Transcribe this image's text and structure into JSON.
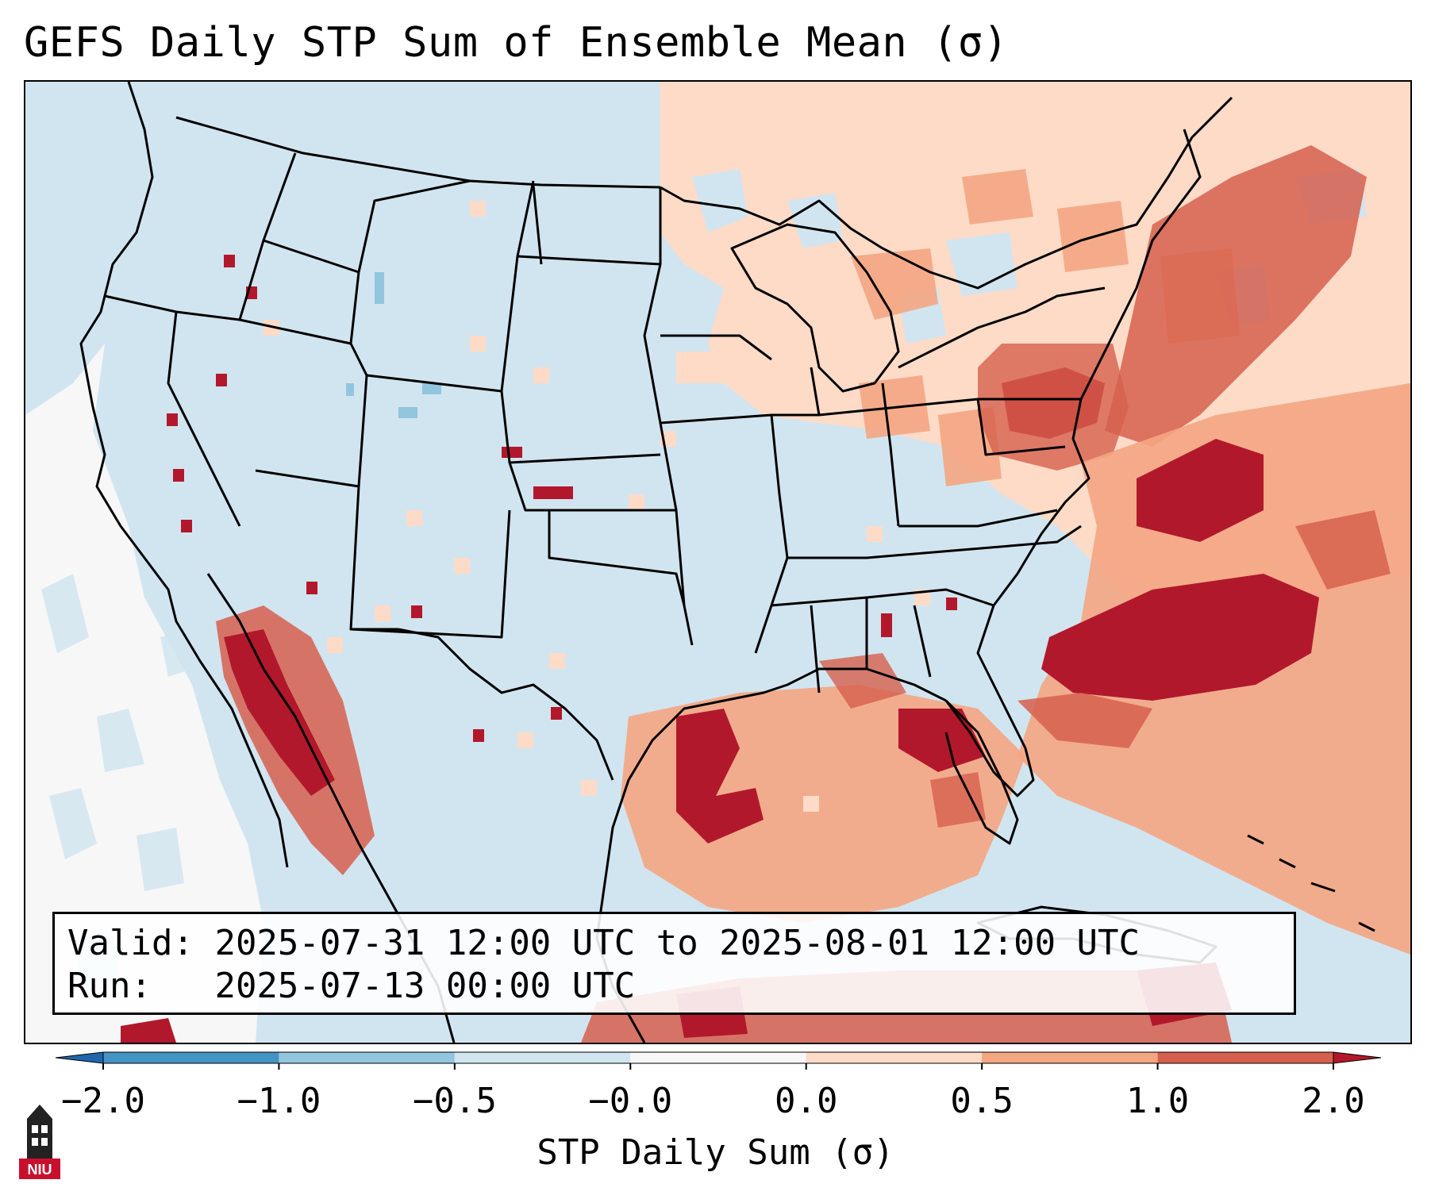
{
  "title": "GEFS Daily STP Sum of Ensemble Mean (σ)",
  "info": {
    "valid_label": "Valid:",
    "valid_value": "2025-07-31 12:00 UTC to 2025-08-01 12:00 UTC",
    "run_label": "Run:  ",
    "run_value": "2025-07-13 00:00 UTC"
  },
  "colorbar": {
    "label": "STP Daily Sum (σ)",
    "ticks": [
      "−2.0",
      "−1.0",
      "−0.5",
      "−0.0",
      "0.0",
      "0.5",
      "1.0",
      "2.0"
    ],
    "colors": [
      "#4393c3",
      "#92c5de",
      "#d1e5f0",
      "#f7f7f7",
      "#fddbc7",
      "#f4a582",
      "#d6604d",
      "#b2182b"
    ],
    "under_color": "#2166ac",
    "over_color": "#b2182b"
  },
  "logo": {
    "text": "NIU",
    "icon": "university-tower-icon"
  },
  "map": {
    "background_color": "#d1e5f0",
    "regions": [
      {
        "name": "pacific-ocean-offshore",
        "level": "near-zero"
      },
      {
        "name": "canada-northeast",
        "level": "0.0 to 0.5"
      },
      {
        "name": "great-lakes",
        "level": "0.0 to 0.5"
      },
      {
        "name": "pennsylvania",
        "level": "1.0 to 2.0"
      },
      {
        "name": "northeast-us",
        "level": "0.5 to 1.0"
      },
      {
        "name": "western-atlantic",
        "level": "1.0 to 2.0"
      },
      {
        "name": "gulf-of-mexico",
        "level": "1.0 to 2.0"
      },
      {
        "name": "gulf-of-california",
        "level": "1.0 to 2.0"
      },
      {
        "name": "caribbean",
        "level": "1.0 to 2.0"
      }
    ]
  }
}
